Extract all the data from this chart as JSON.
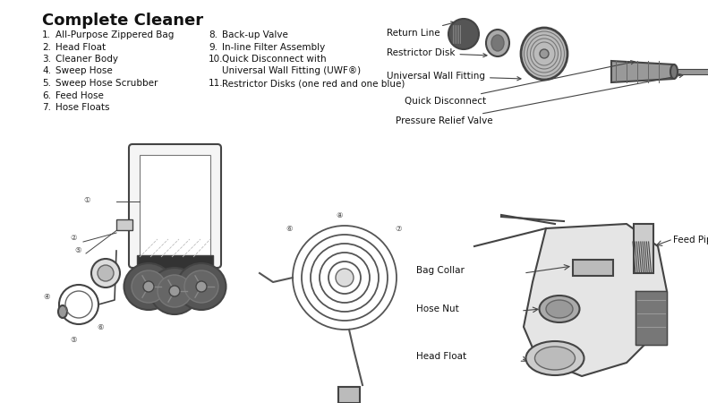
{
  "title": "Complete Cleaner",
  "bg_color": "#ffffff",
  "text_color": "#111111",
  "parts_left": [
    [
      "1.",
      "All-Purpose Zippered Bag"
    ],
    [
      "2.",
      "Head Float"
    ],
    [
      "3.",
      "Cleaner Body"
    ],
    [
      "4.",
      "Sweep Hose"
    ],
    [
      "5.",
      "Sweep Hose Scrubber"
    ],
    [
      "6.",
      "Feed Hose"
    ],
    [
      "7.",
      "Hose Floats"
    ]
  ],
  "parts_right_8": "Back-up Valve",
  "parts_right_9": "In-line Filter Assembly",
  "parts_right_10a": "Quick Disconnect with",
  "parts_right_10b": "Universal Wall Fitting (UWF®)",
  "parts_right_11": "Restrictor Disks (one red and one blue)",
  "upper_labels": [
    "Return Line",
    "Restrictor Disk",
    "Universal Wall Fitting",
    "Quick Disconnect",
    "Pressure Relief Valve"
  ],
  "lower_labels": [
    "Feed Pipe",
    "Bag Collar",
    "Hose Nut",
    "Head Float"
  ],
  "fs_title": 13,
  "fs_list": 7.5,
  "fs_label": 7.5,
  "line_color": "#444444",
  "light_gray": "#cccccc",
  "mid_gray": "#888888",
  "dark_gray": "#444444"
}
